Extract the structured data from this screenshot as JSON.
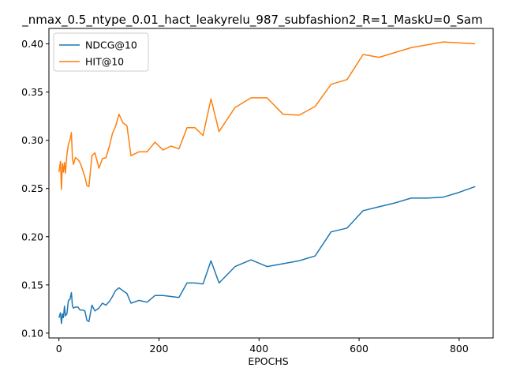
{
  "chart_data": {
    "type": "line",
    "title": "_nmax_0.5_ntype_0.01_hact_leakyrelu_987_subfashion2_R=1_MaskU=0_Sam",
    "xlabel": "EPOCHS",
    "ylabel": "",
    "xlim": [
      -20,
      868
    ],
    "ylim": [
      0.095,
      0.416
    ],
    "xticks": [
      0,
      200,
      400,
      600,
      800
    ],
    "yticks": [
      0.1,
      0.15,
      0.2,
      0.25,
      0.3,
      0.35,
      0.4
    ],
    "xtick_labels": [
      "0",
      "200",
      "400",
      "600",
      "800"
    ],
    "ytick_labels": [
      "0.10",
      "0.15",
      "0.20",
      "0.25",
      "0.30",
      "0.35",
      "0.40"
    ],
    "grid": false,
    "legend_position": "upper-left",
    "series": [
      {
        "name": "NDCG@10",
        "color": "#1f77b4",
        "x": [
          0,
          3,
          5,
          7,
          9,
          11,
          13,
          16,
          19,
          22,
          25,
          27,
          29,
          33,
          38,
          42,
          47,
          52,
          56,
          60,
          66,
          72,
          80,
          87,
          94,
          101,
          107,
          113,
          120,
          128,
          136,
          144,
          160,
          176,
          192,
          208,
          224,
          240,
          256,
          272,
          288,
          304,
          320,
          352,
          384,
          416,
          448,
          480,
          512,
          544,
          576,
          608,
          640,
          672,
          704,
          736,
          768,
          800,
          832
        ],
        "y": [
          0.116,
          0.121,
          0.11,
          0.12,
          0.116,
          0.128,
          0.118,
          0.12,
          0.134,
          0.135,
          0.142,
          0.128,
          0.126,
          0.127,
          0.127,
          0.124,
          0.124,
          0.123,
          0.113,
          0.112,
          0.129,
          0.123,
          0.126,
          0.131,
          0.129,
          0.133,
          0.138,
          0.144,
          0.147,
          0.144,
          0.141,
          0.131,
          0.134,
          0.132,
          0.139,
          0.139,
          0.138,
          0.137,
          0.152,
          0.152,
          0.151,
          0.175,
          0.152,
          0.169,
          0.176,
          0.169,
          0.172,
          0.175,
          0.18,
          0.205,
          0.209,
          0.227,
          0.231,
          0.235,
          0.24,
          0.24,
          0.241,
          0.246,
          0.252
        ]
      },
      {
        "name": "HIT@10",
        "color": "#ff7f0e",
        "x": [
          0,
          3,
          5,
          7,
          9,
          11,
          13,
          16,
          19,
          22,
          25,
          27,
          29,
          33,
          38,
          42,
          47,
          52,
          56,
          60,
          66,
          72,
          80,
          87,
          94,
          101,
          107,
          113,
          120,
          128,
          136,
          144,
          160,
          176,
          192,
          208,
          224,
          240,
          256,
          272,
          288,
          304,
          320,
          352,
          384,
          416,
          448,
          480,
          512,
          544,
          576,
          608,
          640,
          672,
          704,
          736,
          768,
          800,
          832
        ],
        "y": [
          0.267,
          0.278,
          0.249,
          0.276,
          0.267,
          0.277,
          0.266,
          0.285,
          0.296,
          0.3,
          0.308,
          0.281,
          0.275,
          0.282,
          0.28,
          0.277,
          0.27,
          0.262,
          0.253,
          0.252,
          0.284,
          0.287,
          0.271,
          0.281,
          0.282,
          0.294,
          0.307,
          0.314,
          0.327,
          0.318,
          0.315,
          0.284,
          0.288,
          0.288,
          0.298,
          0.29,
          0.294,
          0.291,
          0.313,
          0.313,
          0.305,
          0.343,
          0.309,
          0.334,
          0.344,
          0.344,
          0.327,
          0.326,
          0.335,
          0.358,
          0.363,
          0.389,
          0.386,
          0.391,
          0.396,
          0.399,
          0.402,
          0.401,
          0.4
        ]
      }
    ]
  }
}
